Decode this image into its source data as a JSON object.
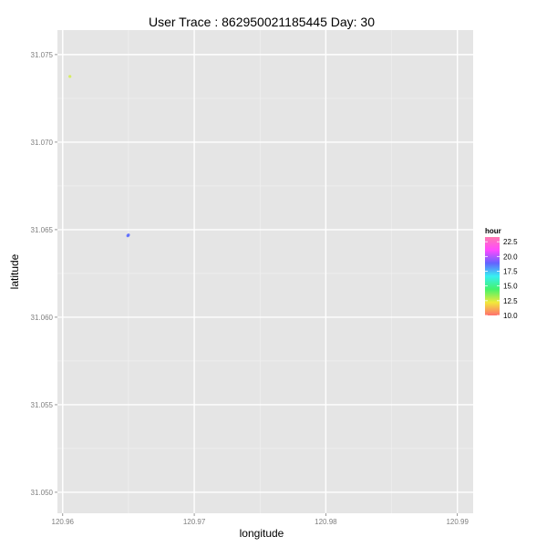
{
  "chart_data": {
    "type": "scatter",
    "title": "User Trace : 862950021185445  Day:  30",
    "xlabel": "longitude",
    "ylabel": "latitude",
    "xlim": [
      120.9596,
      120.9912
    ],
    "ylim": [
      31.0488,
      31.0764
    ],
    "x_ticks": [
      120.96,
      120.97,
      120.98,
      120.99
    ],
    "x_tick_labels": [
      "120.96",
      "120.97",
      "120.98",
      "120.99"
    ],
    "y_ticks": [
      31.05,
      31.055,
      31.06,
      31.065,
      31.07,
      31.075
    ],
    "y_tick_labels": [
      "31.050",
      "31.055",
      "31.060",
      "31.065",
      "31.070",
      "31.075"
    ],
    "grid": true,
    "points": [
      {
        "x": 120.96055,
        "y": 31.07375,
        "hour": 13.5,
        "color": "#d4ef4a"
      },
      {
        "x": 120.96495,
        "y": 31.06465,
        "hour": 20.0,
        "color": "#5a6bff"
      },
      {
        "x": 120.965,
        "y": 31.0647,
        "hour": 20.0,
        "color": "#5a6bff"
      }
    ],
    "legend": {
      "title": "hour",
      "position": "right",
      "min": 10.0,
      "max": 23.3,
      "labels": [
        "22.5",
        "20.0",
        "17.5",
        "15.0",
        "12.5",
        "10.0"
      ],
      "values": [
        22.5,
        20.0,
        17.5,
        15.0,
        12.5,
        10.0
      ],
      "gradient_colors": [
        "#ff6f6f",
        "#f1ea3a",
        "#44f36a",
        "#37f0f2",
        "#6363ff",
        "#ff49ff",
        "#ff79b0"
      ]
    },
    "colors": {
      "panel_background": "#e5e5e5",
      "grid_major": "#ffffff",
      "grid_minor": "#f2f2f2",
      "tick_text": "#7f7f7f"
    }
  }
}
